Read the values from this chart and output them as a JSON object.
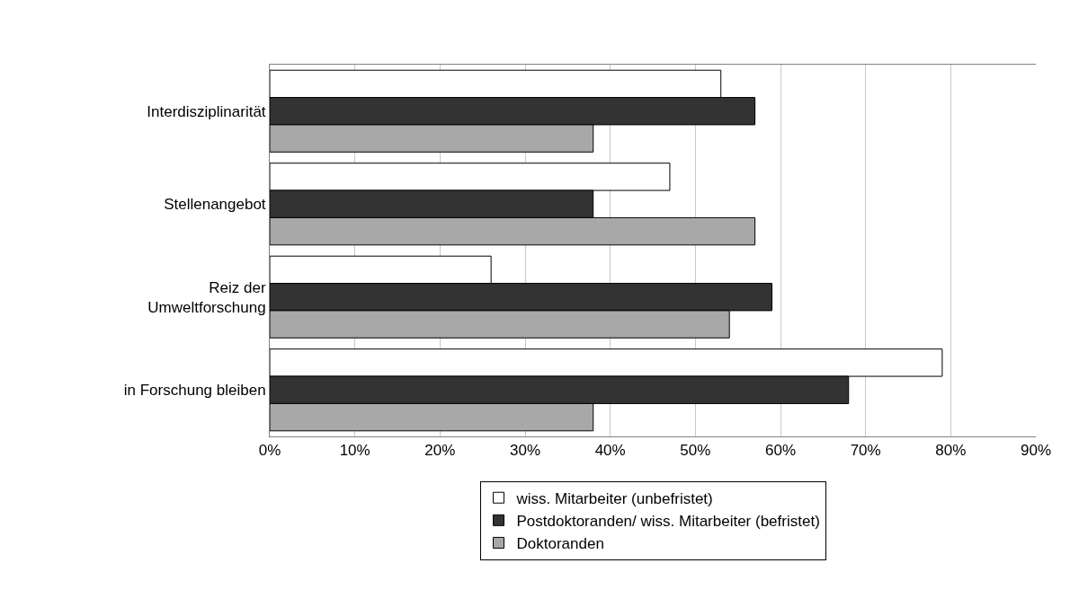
{
  "chart_data": {
    "type": "bar",
    "orientation": "horizontal",
    "categories": [
      "Interdisziplinarität",
      "Stellenangebot",
      "Reiz der Umweltforschung",
      "in Forschung bleiben"
    ],
    "series": [
      {
        "name": "wiss. Mitarbeiter (unbefristet)",
        "color": "#ffffff",
        "values": [
          53,
          47,
          26,
          79
        ]
      },
      {
        "name": "Postdoktoranden/ wiss. Mitarbeiter (befristet)",
        "color": "#333333",
        "values": [
          57,
          38,
          59,
          68
        ]
      },
      {
        "name": "Doktoranden",
        "color": "#a8a8a8",
        "values": [
          38,
          57,
          54,
          38
        ]
      }
    ],
    "xlim": [
      0,
      90
    ],
    "xticks": [
      {
        "value": 0,
        "label": "0%"
      },
      {
        "value": 10,
        "label": "10%"
      },
      {
        "value": 20,
        "label": "20%"
      },
      {
        "value": 30,
        "label": "30%"
      },
      {
        "value": 40,
        "label": "40%"
      },
      {
        "value": 50,
        "label": "50%"
      },
      {
        "value": 60,
        "label": "60%"
      },
      {
        "value": 70,
        "label": "70%"
      },
      {
        "value": 80,
        "label": "80%"
      },
      {
        "value": 90,
        "label": "90%"
      }
    ],
    "grid": "x",
    "legend": "bottom"
  }
}
